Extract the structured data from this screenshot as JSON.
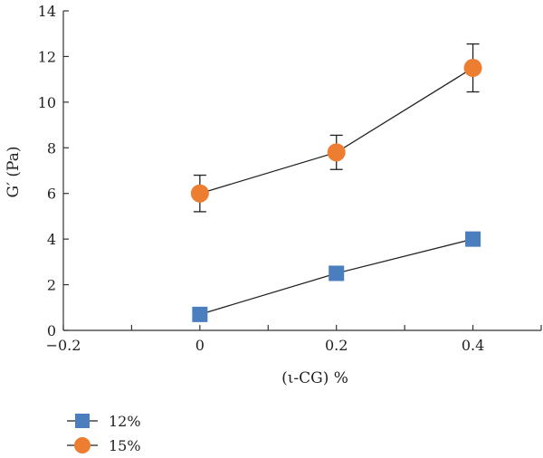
{
  "chart_data": {
    "type": "line",
    "title": "",
    "xlabel": "(ι-CG) %",
    "ylabel": "G′ (Pa)",
    "xlim": [
      -0.2,
      0.5
    ],
    "ylim": [
      0,
      14
    ],
    "x_ticks": [
      -0.2,
      -0.1,
      0,
      0.1,
      0.2,
      0.3,
      0.4,
      0.5
    ],
    "x_tick_labels": [
      "−0.2",
      "",
      "0",
      "",
      "0.2",
      "",
      "0.4",
      ""
    ],
    "y_ticks": [
      0,
      2,
      4,
      6,
      8,
      10,
      12,
      14
    ],
    "y_tick_labels": [
      "0",
      "2",
      "4",
      "6",
      "8",
      "10",
      "12",
      "14"
    ],
    "grid": false,
    "legend_position": "bottom-left",
    "series": [
      {
        "name": "12%",
        "marker": "square",
        "color": "#4a7ebf",
        "x": [
          0,
          0.2,
          0.4
        ],
        "y": [
          0.7,
          2.5,
          4.0
        ],
        "error": [
          0,
          0,
          0
        ]
      },
      {
        "name": "15%",
        "marker": "circle",
        "color": "#ed7d31",
        "x": [
          0,
          0.2,
          0.4
        ],
        "y": [
          6.0,
          7.8,
          11.5
        ],
        "error": [
          0.8,
          0.75,
          1.05
        ]
      }
    ]
  }
}
